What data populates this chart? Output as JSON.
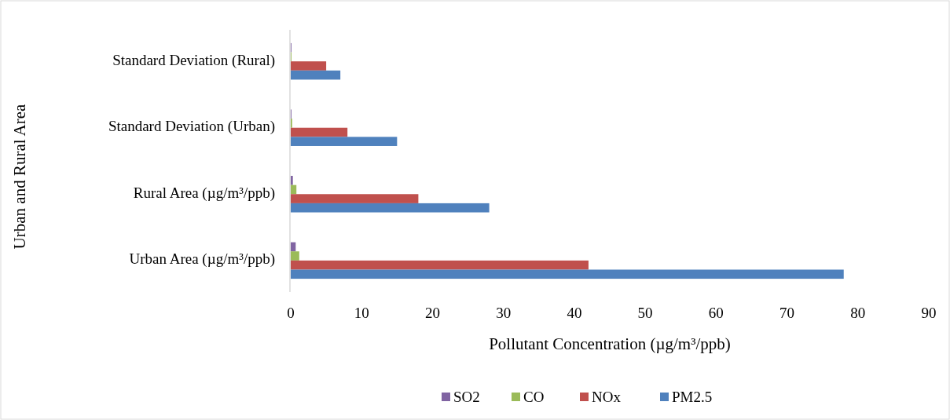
{
  "chart_data": {
    "type": "bar",
    "orientation": "horizontal",
    "xlabel": "Pollutant Concentration (µg/m³/ppb)",
    "ylabel": "Urban and Rural Area",
    "categories": [
      "Standard Deviation (Rural)",
      "Standard Deviation (Urban)",
      "Rural Area (µg/m³/ppb)",
      "Urban Area (µg/m³/ppb)"
    ],
    "series": [
      {
        "name": "SO2",
        "color": "#8064a2",
        "values": [
          0.1,
          0.1,
          0.3,
          0.7
        ]
      },
      {
        "name": "CO",
        "color": "#9bbb59",
        "values": [
          0.1,
          0.2,
          0.8,
          1.2
        ]
      },
      {
        "name": "NOx",
        "color": "#c0504d",
        "values": [
          5,
          8,
          18,
          42
        ]
      },
      {
        "name": "PM2.5",
        "color": "#4f81bd",
        "values": [
          7,
          15,
          28,
          78
        ]
      }
    ],
    "xlim": [
      0,
      90
    ],
    "xticks": [
      0,
      10,
      20,
      30,
      40,
      50,
      60,
      70,
      80,
      90
    ],
    "grid": false,
    "legend": "bottom"
  }
}
